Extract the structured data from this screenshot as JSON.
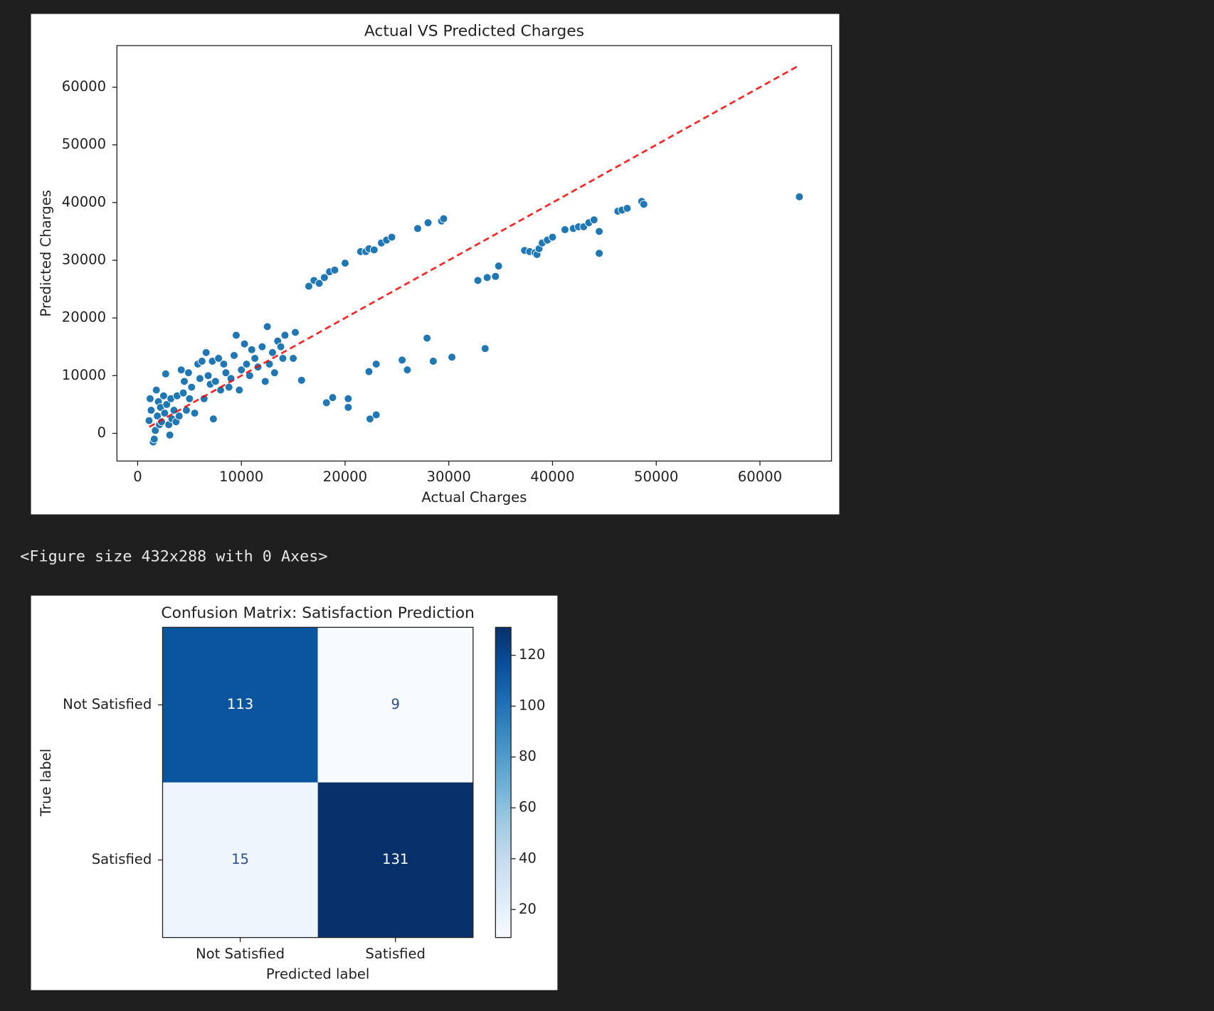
{
  "chart_data": [
    {
      "type": "scatter",
      "title": "Actual VS Predicted Charges",
      "xlabel": "Actual Charges",
      "ylabel": "Predicted Charges",
      "color": "#1f77b4",
      "x": [
        1100,
        1200,
        1300,
        1500,
        1600,
        1700,
        1800,
        1900,
        2000,
        2100,
        2200,
        2300,
        2500,
        2600,
        2700,
        2800,
        3000,
        3100,
        3200,
        3300,
        3500,
        3700,
        3800,
        4000,
        4200,
        4400,
        4500,
        4700,
        4900,
        5000,
        5200,
        5500,
        5800,
        6000,
        6200,
        6400,
        6600,
        6800,
        7000,
        7200,
        7500,
        7800,
        8000,
        8300,
        8500,
        8800,
        9000,
        9300,
        9500,
        9800,
        10000,
        10300,
        10500,
        10800,
        11000,
        11300,
        11600,
        12000,
        12300,
        12500,
        12700,
        13000,
        13200,
        13500,
        13800,
        14000,
        14200,
        15000,
        15200,
        16500,
        17000,
        17500,
        18000,
        18500,
        19000,
        20000,
        21500,
        22000,
        22300,
        22800,
        23500,
        24000,
        24500,
        27000,
        28000,
        29300,
        29500,
        32800,
        33700,
        34500,
        34800,
        37300,
        37800,
        38300,
        38500,
        38700,
        39000,
        39500,
        40000,
        41200,
        42000,
        42500,
        43000,
        43500,
        44000,
        44500,
        44500,
        46300,
        46700,
        47200,
        48600,
        48800,
        63800,
        18200,
        18800,
        20300,
        20300,
        22400,
        23000,
        22300,
        23000,
        25500,
        26000,
        27900,
        28500,
        30300,
        33500,
        15800,
        7300
      ],
      "y": [
        2200,
        6000,
        4000,
        -1500,
        -1000,
        500,
        7500,
        3000,
        5500,
        1500,
        4500,
        2000,
        6500,
        3500,
        10300,
        5000,
        1500,
        -300,
        6000,
        2500,
        4000,
        2000,
        6500,
        3000,
        11000,
        7000,
        9000,
        4000,
        10500,
        6000,
        8000,
        3500,
        12000,
        9500,
        12500,
        6000,
        14000,
        10000,
        8500,
        12500,
        9000,
        13000,
        7500,
        12000,
        10500,
        8000,
        9500,
        13500,
        17000,
        7500,
        11000,
        15500,
        12000,
        10000,
        14500,
        13000,
        11500,
        15000,
        9000,
        18500,
        12000,
        14000,
        10500,
        16000,
        15000,
        13000,
        17000,
        13000,
        17500,
        25500,
        26500,
        26000,
        27000,
        28000,
        28300,
        29500,
        31500,
        31500,
        32000,
        31800,
        33000,
        33500,
        34000,
        35500,
        36500,
        36800,
        37200,
        26500,
        27000,
        27200,
        29000,
        31700,
        31500,
        31300,
        31000,
        32000,
        33000,
        33500,
        34000,
        35300,
        35500,
        35800,
        35800,
        36500,
        37000,
        35000,
        31200,
        38500,
        38700,
        39000,
        40200,
        39700,
        41000,
        5300,
        6200,
        6000,
        4500,
        2500,
        3200,
        10700,
        12000,
        12700,
        11000,
        16500,
        12500,
        13200,
        14700,
        9200,
        2500
      ],
      "reference_line": {
        "x": [
          1122,
          63770
        ],
        "y": [
          1122,
          63770
        ],
        "color": "#ff0000",
        "style": "dashed"
      },
      "xlim": [
        -2000,
        66900
      ],
      "ylim": [
        -4800,
        67200
      ],
      "xticks": [
        0,
        10000,
        20000,
        30000,
        40000,
        50000,
        60000
      ],
      "yticks": [
        0,
        10000,
        20000,
        30000,
        40000,
        50000,
        60000
      ]
    },
    {
      "type": "heatmap",
      "title": "Confusion Matrix: Satisfaction Prediction",
      "xlabel": "Predicted label",
      "ylabel": "True label",
      "x_categories": [
        "Not Satisfied",
        "Satisfied"
      ],
      "y_categories": [
        "Not Satisfied",
        "Satisfied"
      ],
      "matrix": [
        [
          113,
          9
        ],
        [
          15,
          131
        ]
      ],
      "cell_colors": [
        [
          "#0b559f",
          "#f7fbff"
        ],
        [
          "#eef5fc",
          "#08306b"
        ]
      ],
      "colorbar": {
        "clim": [
          9,
          131
        ],
        "ticks": [
          20,
          40,
          60,
          80,
          100,
          120
        ],
        "colors": [
          "#f7fbff",
          "#deebf7",
          "#c6dbef",
          "#9ecae1",
          "#6baed6",
          "#4292c6",
          "#2171b5",
          "#08519c",
          "#08306b"
        ]
      }
    }
  ],
  "output_text": "<Figure size 432x288 with 0 Axes>"
}
